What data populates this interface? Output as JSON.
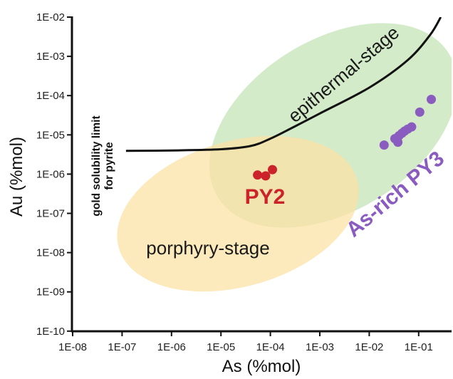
{
  "chart_data": {
    "type": "scatter",
    "x_scale": "log",
    "y_scale": "log",
    "xlabel": "As (%mol)",
    "ylabel": "Au (%mol)",
    "xlim": [
      "1E-08",
      "1E+00"
    ],
    "ylim": [
      "1E-10",
      "1E-02"
    ],
    "x_ticks": [
      "1E-08",
      "1E-07",
      "1E-06",
      "1E-05",
      "1E-04",
      "1E-03",
      "1E-02",
      "1E-01"
    ],
    "y_ticks": [
      "1E-02",
      "1E-03",
      "1E-04",
      "1E-05",
      "1E-06",
      "1E-07",
      "1E-08",
      "1E-09",
      "1E-10"
    ],
    "grid": false,
    "fields": [
      {
        "label": "epithermal-stage",
        "color": "#cbe7c0"
      },
      {
        "label": "porphyry-stage",
        "color": "#fbe2a6"
      }
    ],
    "curve": {
      "label_lines": [
        "gold solubility limit",
        "for pyrite"
      ],
      "color": "#111111",
      "points": [
        {
          "x": 1.2e-07,
          "y": 3.9e-06
        },
        {
          "x": 1e-06,
          "y": 4e-06
        },
        {
          "x": 1e-05,
          "y": 4.3e-06
        },
        {
          "x": 4e-05,
          "y": 5.2e-06
        },
        {
          "x": 0.0001,
          "y": 8e-06
        },
        {
          "x": 0.0003,
          "y": 1.6e-05
        },
        {
          "x": 0.001,
          "y": 3.5e-05
        },
        {
          "x": 0.01,
          "y": 0.00016
        },
        {
          "x": 0.06,
          "y": 0.0008
        },
        {
          "x": 0.17,
          "y": 0.0035
        },
        {
          "x": 0.28,
          "y": 0.01
        }
      ]
    },
    "series": [
      {
        "name": "PY2",
        "color": "#cc2229",
        "points": [
          {
            "x": 5.5e-05,
            "y": 9.5e-07
          },
          {
            "x": 8e-05,
            "y": 9e-07
          },
          {
            "x": 0.00011,
            "y": 1.3e-06
          }
        ]
      },
      {
        "name": "As-rich PY3",
        "color": "#8a5cc0",
        "points": [
          {
            "x": 0.02,
            "y": 5.5e-06
          },
          {
            "x": 0.033,
            "y": 8e-06
          },
          {
            "x": 0.038,
            "y": 6.5e-06
          },
          {
            "x": 0.04,
            "y": 9.5e-06
          },
          {
            "x": 0.046,
            "y": 1.1e-05
          },
          {
            "x": 0.052,
            "y": 1.25e-05
          },
          {
            "x": 0.06,
            "y": 1.4e-05
          },
          {
            "x": 0.072,
            "y": 1.6e-05
          },
          {
            "x": 0.105,
            "y": 3.8e-05
          },
          {
            "x": 0.18,
            "y": 8e-05
          }
        ]
      }
    ]
  }
}
